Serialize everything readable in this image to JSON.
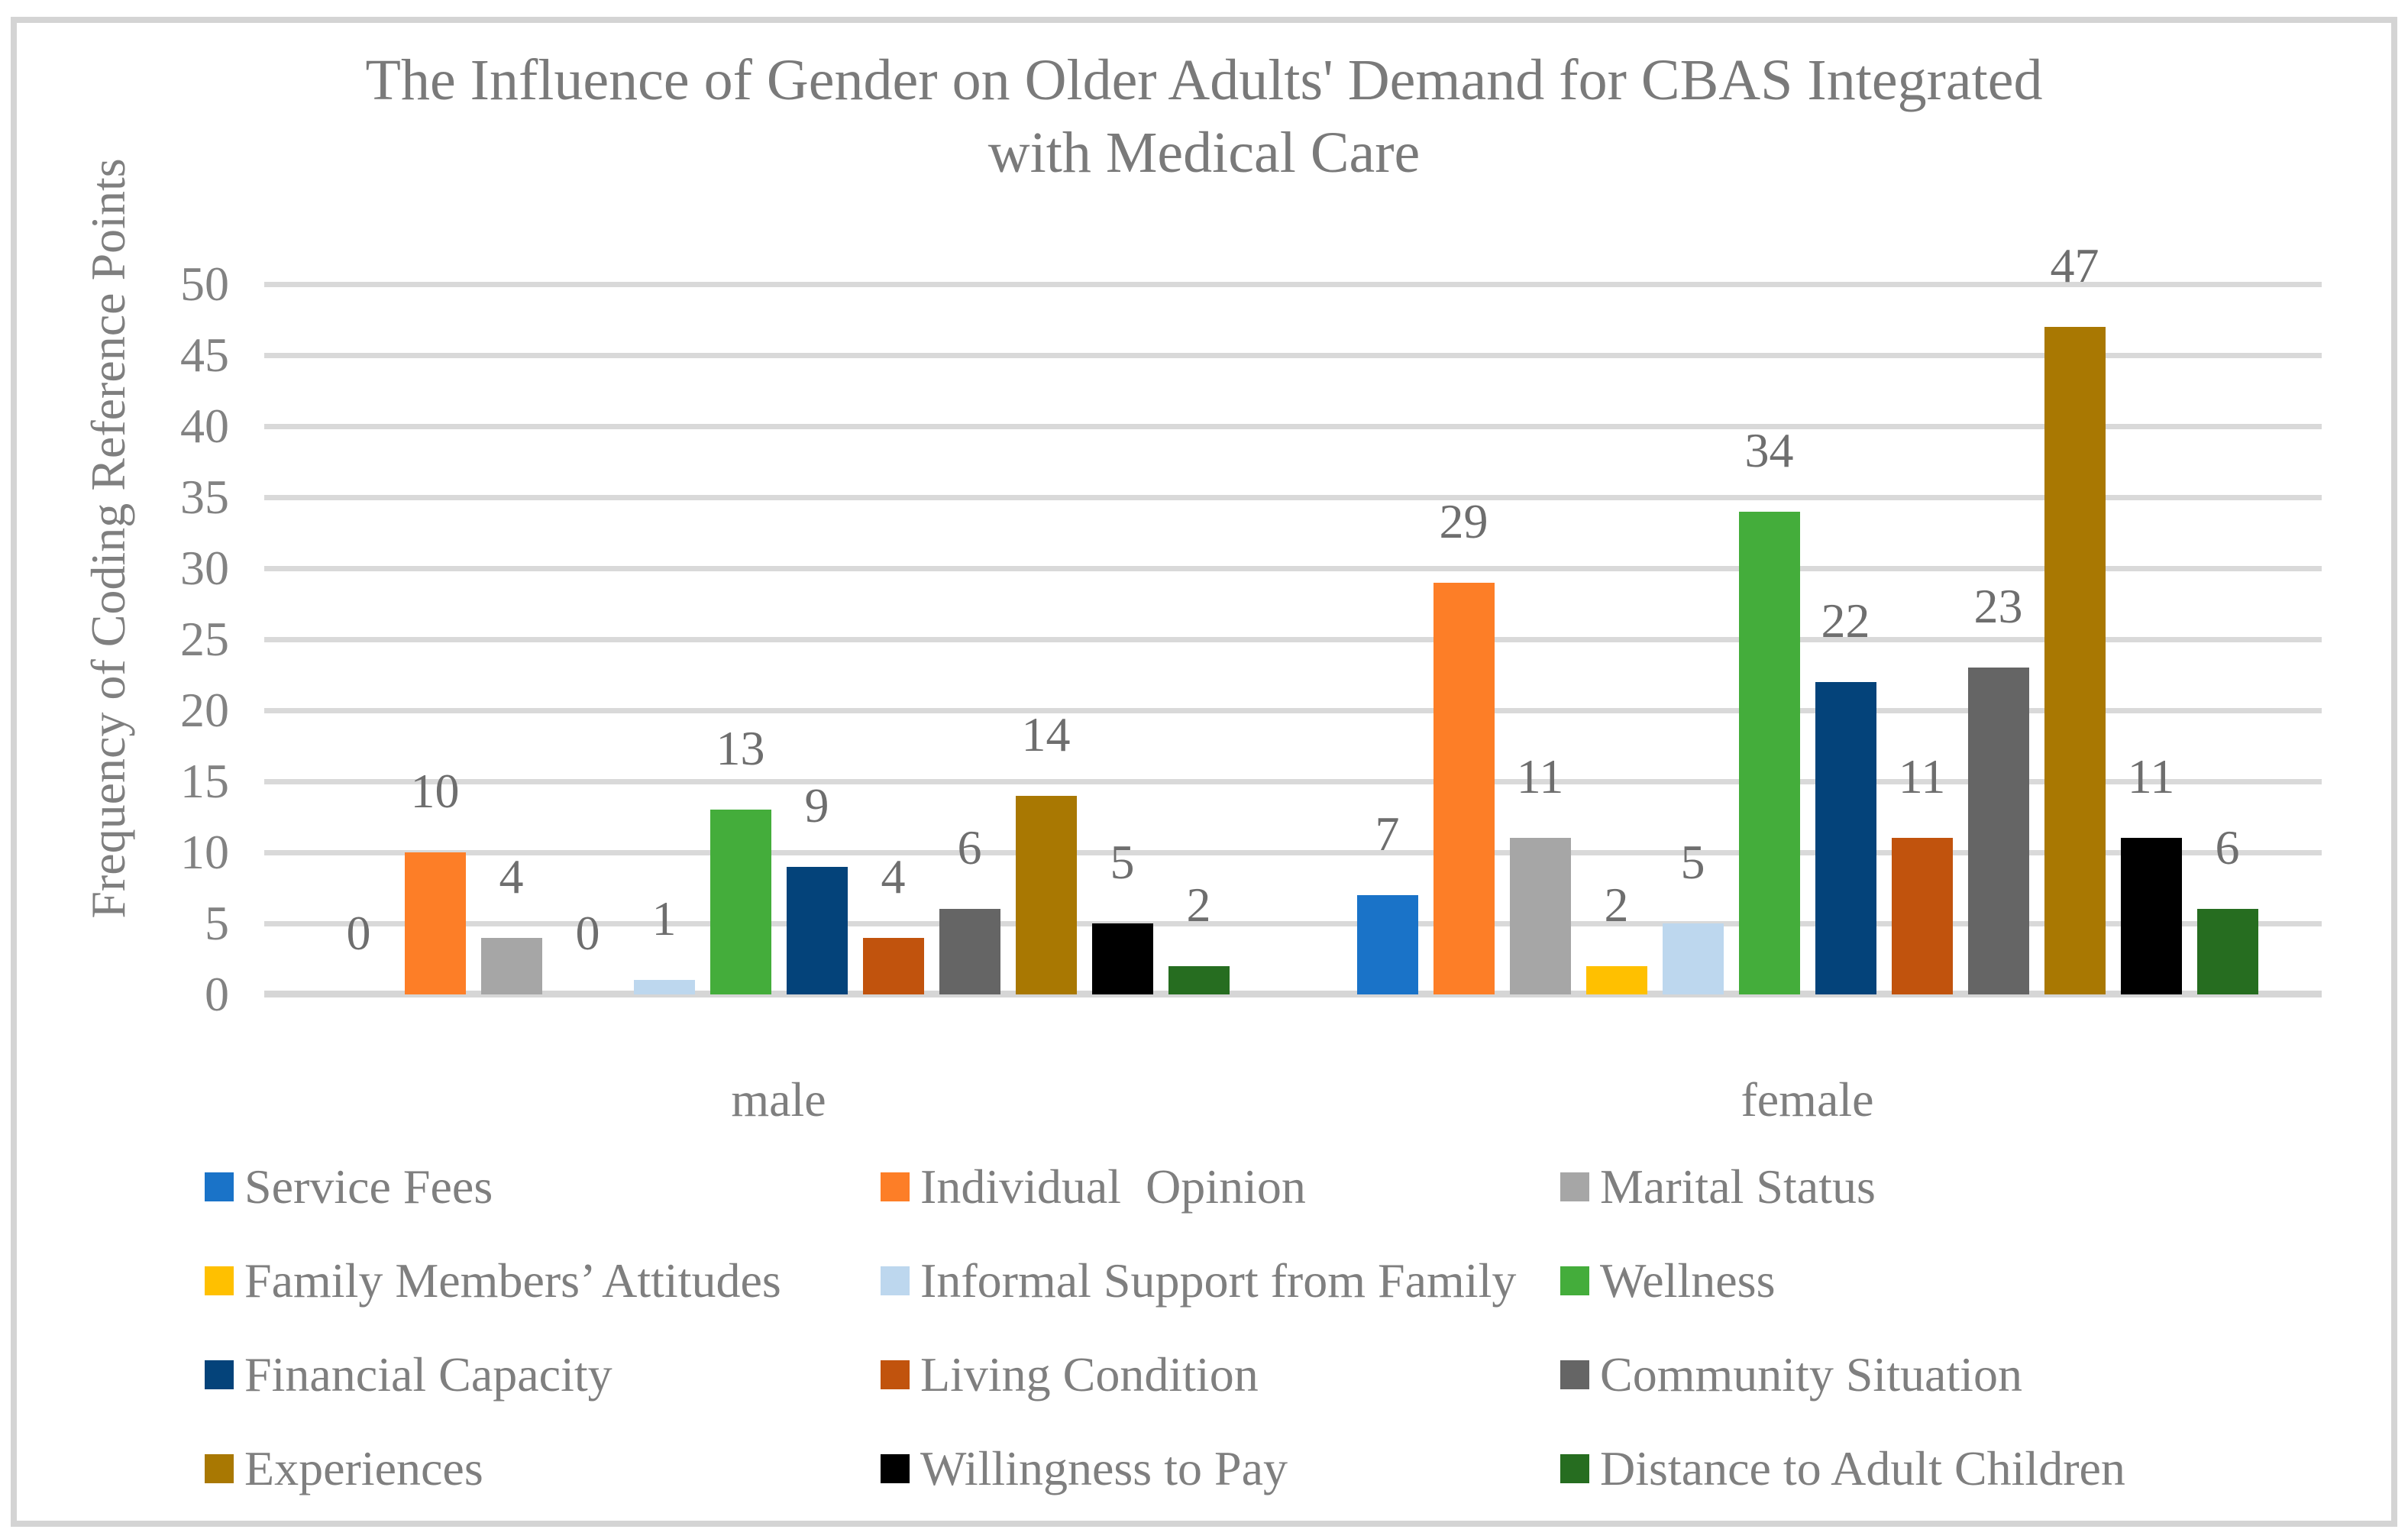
{
  "title": {
    "line1": "The Influence of Gender on Older Adults' Demand for CBAS Integrated",
    "line2": "with Medical Care"
  },
  "chart_data": {
    "type": "bar",
    "title": "The Influence of Gender on Older Adults' Demand for CBAS Integrated with Medical Care",
    "xlabel": "",
    "ylabel": "Frequency of Coding Reference Points",
    "ylim": [
      0,
      50
    ],
    "yticks": [
      0,
      5,
      10,
      15,
      20,
      25,
      30,
      35,
      40,
      45,
      50
    ],
    "grid": true,
    "legend_position": "bottom",
    "categories": [
      "male",
      "female"
    ],
    "series": [
      {
        "name": "Service Fees",
        "color": "#1a73c8",
        "values": [
          0,
          7
        ]
      },
      {
        "name": "Individual  Opinion",
        "color": "#fd7e27",
        "values": [
          10,
          29
        ]
      },
      {
        "name": "Marital Status",
        "color": "#a6a6a6",
        "values": [
          4,
          11
        ]
      },
      {
        "name": "Family Members’ Attitudes",
        "color": "#ffc000",
        "values": [
          0,
          2
        ]
      },
      {
        "name": "Informal Support from Family",
        "color": "#bdd7ee",
        "values": [
          1,
          5
        ]
      },
      {
        "name": "Wellness",
        "color": "#44ad3b",
        "values": [
          13,
          34
        ]
      },
      {
        "name": "Financial Capacity",
        "color": "#04437a",
        "values": [
          9,
          22
        ]
      },
      {
        "name": "Living Condition",
        "color": "#c1530d",
        "values": [
          4,
          11
        ]
      },
      {
        "name": "Community Situation",
        "color": "#656565",
        "values": [
          6,
          23
        ]
      },
      {
        "name": "Experiences",
        "color": "#a97802",
        "values": [
          14,
          47
        ]
      },
      {
        "name": "Willingness to Pay",
        "color": "#000000",
        "values": [
          5,
          11
        ]
      },
      {
        "name": "Distance to Adult Children",
        "color": "#266d20",
        "values": [
          2,
          6
        ]
      }
    ]
  }
}
